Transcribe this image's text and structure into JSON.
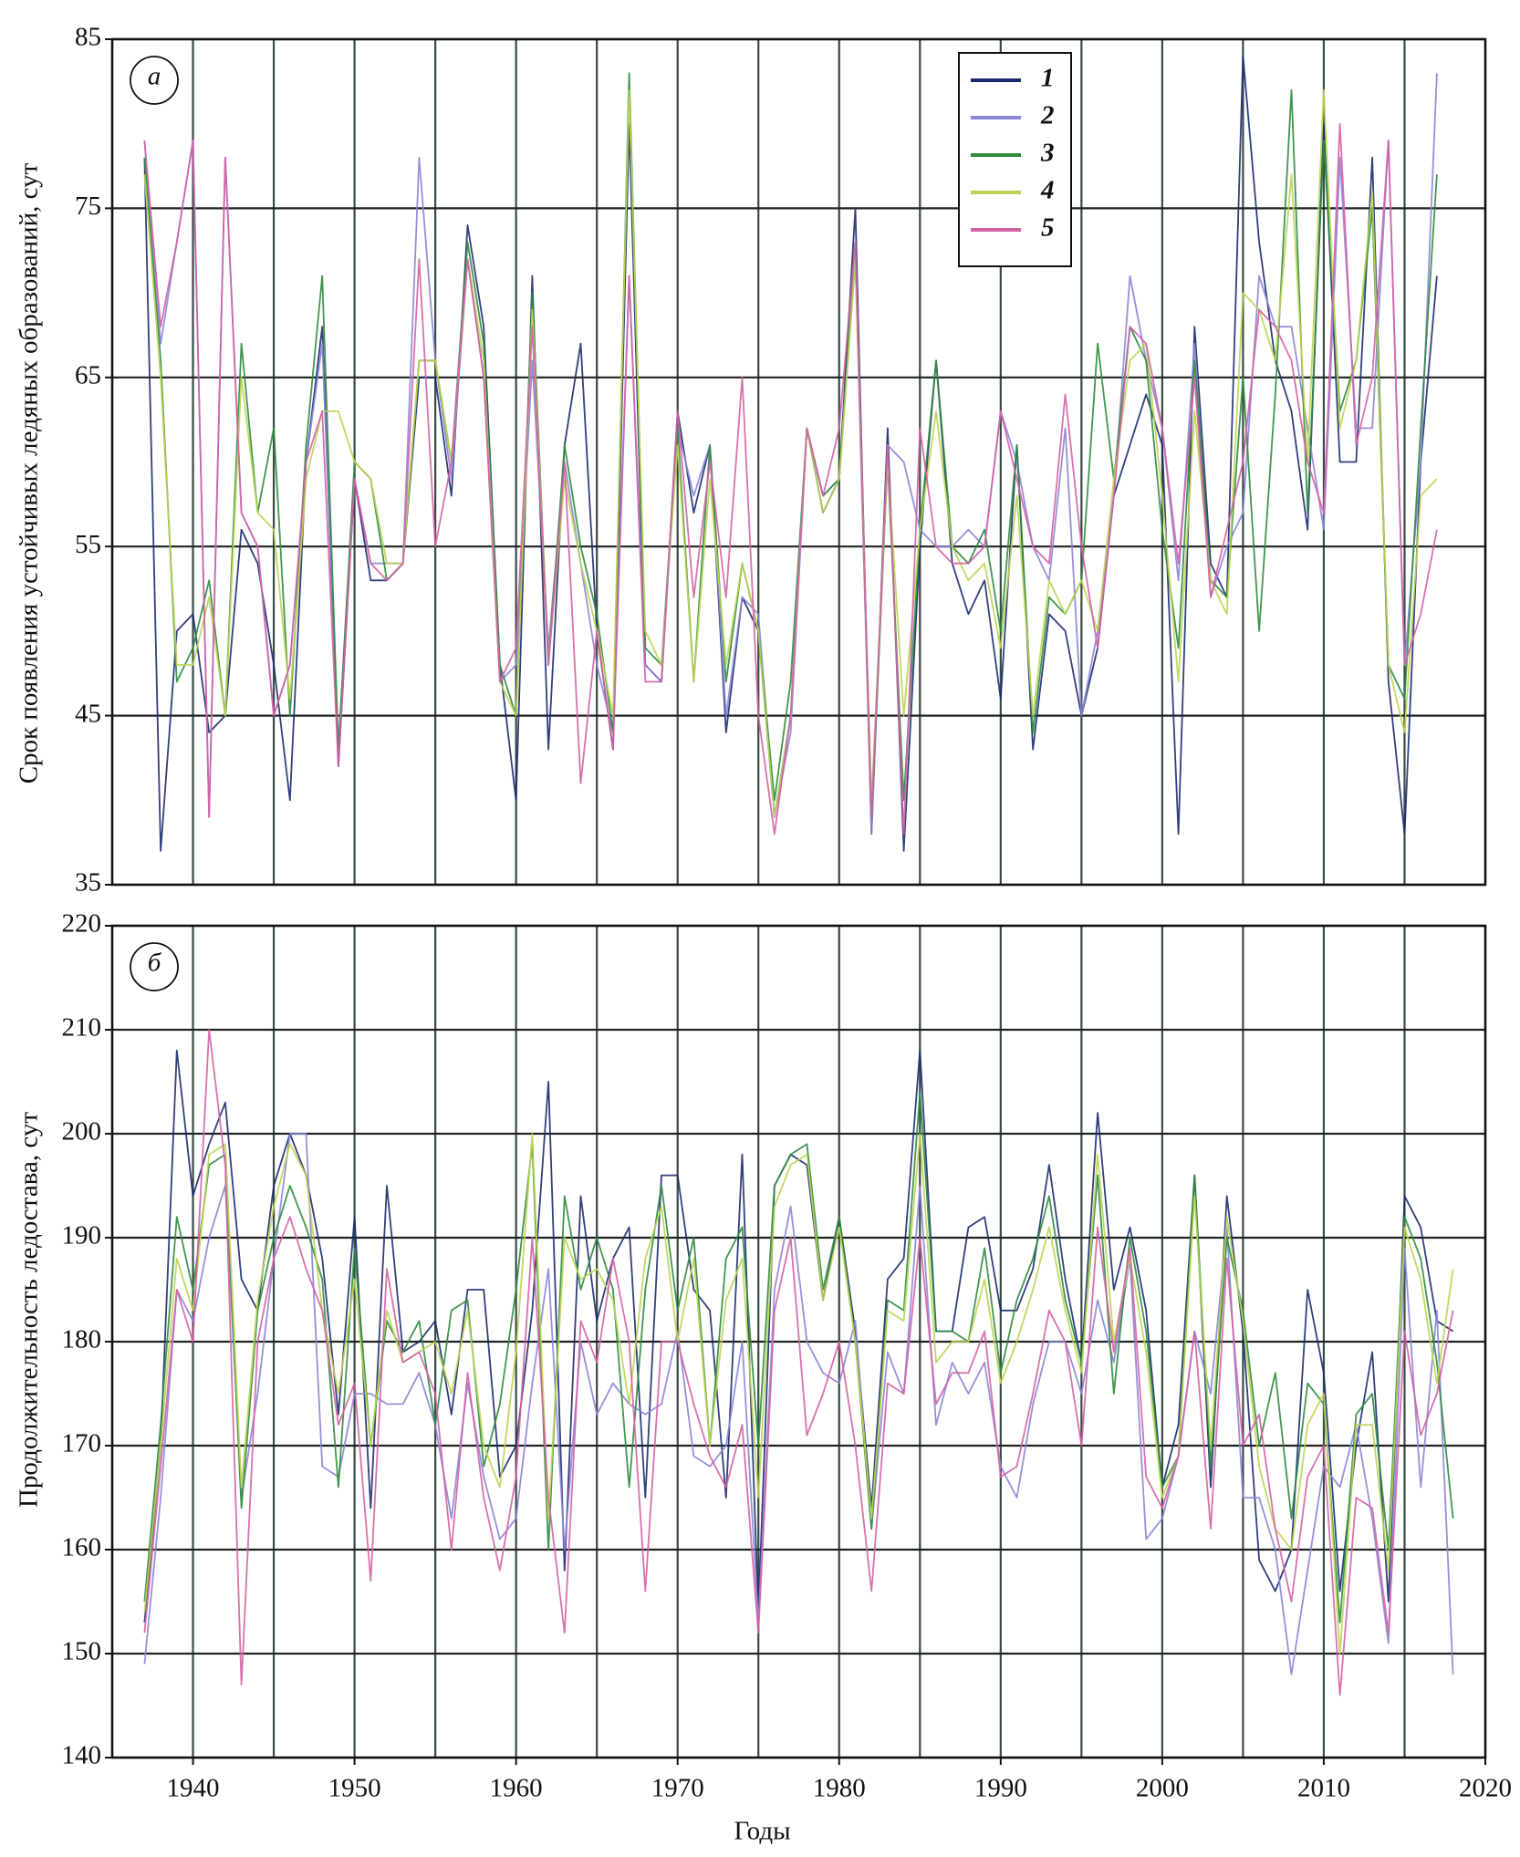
{
  "chart_data": [
    {
      "type": "line",
      "panel_label": "а",
      "y_label": "Срок появления устойчивых ледяных образований, сут",
      "xlim": [
        1935,
        2020
      ],
      "ylim": [
        35,
        85
      ],
      "yticks": [
        35,
        45,
        55,
        65,
        75,
        85
      ],
      "xgrid": [
        1935,
        1940,
        1945,
        1950,
        1955,
        1960,
        1965,
        1970,
        1975,
        1980,
        1985,
        1990,
        1995,
        2000,
        2005,
        2010,
        2015,
        2020
      ],
      "legend": "top-right",
      "grid": true,
      "x": [
        1937,
        1938,
        1939,
        1940,
        1941,
        1942,
        1943,
        1944,
        1945,
        1946,
        1947,
        1948,
        1949,
        1950,
        1951,
        1952,
        1953,
        1954,
        1955,
        1956,
        1957,
        1958,
        1959,
        1960,
        1961,
        1962,
        1963,
        1964,
        1965,
        1966,
        1967,
        1968,
        1969,
        1970,
        1971,
        1972,
        1973,
        1974,
        1975,
        1976,
        1977,
        1978,
        1979,
        1980,
        1981,
        1982,
        1983,
        1984,
        1985,
        1986,
        1987,
        1988,
        1989,
        1990,
        1991,
        1992,
        1993,
        1994,
        1995,
        1996,
        1997,
        1998,
        1999,
        2000,
        2001,
        2002,
        2003,
        2004,
        2005,
        2006,
        2007,
        2008,
        2009,
        2010,
        2011,
        2012,
        2013,
        2014,
        2015,
        2016,
        2017
      ],
      "series": [
        {
          "name": "1",
          "color": "#1c2b6e",
          "values": [
            78,
            37,
            50,
            51,
            44,
            45,
            56,
            54,
            48,
            40,
            60,
            68,
            42,
            59,
            53,
            53,
            54,
            65,
            65,
            58,
            74,
            68,
            48,
            40,
            71,
            43,
            61,
            67,
            50,
            43,
            80,
            48,
            47,
            63,
            57,
            61,
            44,
            52,
            50,
            39,
            45,
            62,
            57,
            59,
            75,
            38,
            62,
            37,
            55,
            66,
            54,
            51,
            53,
            46,
            61,
            43,
            51,
            50,
            45,
            49,
            58,
            61,
            64,
            61,
            38,
            68,
            54,
            52,
            84,
            73,
            66,
            63,
            56,
            80,
            60,
            60,
            78,
            47,
            38,
            60,
            71
          ]
        },
        {
          "name": "2",
          "color": "#8a86d6",
          "values": [
            79,
            67,
            73,
            79,
            39,
            78,
            57,
            55,
            45,
            48,
            60,
            67,
            43,
            59,
            54,
            54,
            54,
            78,
            66,
            59,
            72,
            65,
            47,
            48,
            66,
            49,
            60,
            54,
            48,
            44,
            71,
            48,
            47,
            62,
            58,
            61,
            45,
            52,
            51,
            39,
            44,
            62,
            58,
            59,
            72,
            38,
            61,
            60,
            56,
            55,
            55,
            56,
            55,
            63,
            60,
            55,
            53,
            62,
            45,
            50,
            58,
            71,
            66,
            62,
            53,
            67,
            52,
            55,
            57,
            71,
            68,
            68,
            62,
            56,
            78,
            62,
            62,
            79,
            48,
            60,
            83
          ]
        },
        {
          "name": "3",
          "color": "#2e8b3e",
          "values": [
            78,
            66,
            47,
            49,
            53,
            45,
            67,
            57,
            62,
            45,
            61,
            71,
            43,
            60,
            59,
            53,
            54,
            66,
            66,
            60,
            73,
            67,
            48,
            45,
            70,
            48,
            61,
            55,
            51,
            44,
            83,
            49,
            48,
            62,
            47,
            61,
            47,
            54,
            50,
            40,
            47,
            62,
            58,
            59,
            73,
            39,
            60,
            40,
            56,
            66,
            55,
            54,
            56,
            50,
            61,
            44,
            52,
            51,
            53,
            67,
            59,
            68,
            66,
            56,
            49,
            66,
            53,
            52,
            65,
            50,
            64,
            82,
            57,
            79,
            63,
            66,
            75,
            48,
            46,
            62,
            77
          ]
        },
        {
          "name": "4",
          "color": "#bcd454",
          "values": [
            77,
            65,
            48,
            48,
            52,
            45,
            65,
            57,
            56,
            46,
            59,
            63,
            63,
            60,
            59,
            54,
            54,
            66,
            66,
            60,
            72,
            66,
            47,
            45,
            69,
            48,
            59,
            54,
            50,
            45,
            82,
            50,
            48,
            61,
            47,
            59,
            48,
            54,
            50,
            39,
            45,
            62,
            57,
            59,
            72,
            40,
            60,
            45,
            56,
            63,
            55,
            53,
            54,
            49,
            58,
            45,
            53,
            51,
            53,
            50,
            59,
            66,
            67,
            58,
            47,
            63,
            53,
            51,
            70,
            69,
            66,
            77,
            60,
            82,
            62,
            66,
            76,
            48,
            44,
            58,
            59
          ]
        },
        {
          "name": "5",
          "color": "#d462a6",
          "values": [
            79,
            68,
            73,
            79,
            39,
            78,
            57,
            55,
            45,
            48,
            60,
            63,
            42,
            59,
            54,
            53,
            54,
            72,
            55,
            60,
            72,
            65,
            47,
            49,
            68,
            48,
            60,
            41,
            50,
            43,
            71,
            47,
            47,
            63,
            52,
            60,
            52,
            65,
            45,
            38,
            45,
            62,
            58,
            62,
            73,
            39,
            61,
            38,
            62,
            55,
            54,
            54,
            55,
            63,
            59,
            55,
            54,
            64,
            55,
            49,
            58,
            68,
            67,
            62,
            54,
            65,
            52,
            56,
            60,
            69,
            68,
            66,
            60,
            57,
            80,
            61,
            65,
            79,
            48,
            51,
            56
          ]
        }
      ]
    },
    {
      "type": "line",
      "panel_label": "б",
      "y_label": "Продолжительность ледостава, сут",
      "x_label": "Годы",
      "xlim": [
        1935,
        2020
      ],
      "ylim": [
        140,
        220
      ],
      "yticks": [
        140,
        150,
        160,
        170,
        180,
        190,
        200,
        210,
        220
      ],
      "xticks": [
        1940,
        1950,
        1960,
        1970,
        1980,
        1990,
        2000,
        2010,
        2020
      ],
      "xgrid": [
        1935,
        1940,
        1945,
        1950,
        1955,
        1960,
        1965,
        1970,
        1975,
        1980,
        1985,
        1990,
        1995,
        2000,
        2005,
        2010,
        2015,
        2020
      ],
      "grid": true,
      "x": [
        1937,
        1938,
        1939,
        1940,
        1941,
        1942,
        1943,
        1944,
        1945,
        1946,
        1947,
        1948,
        1949,
        1950,
        1951,
        1952,
        1953,
        1954,
        1955,
        1956,
        1957,
        1958,
        1959,
        1960,
        1961,
        1962,
        1963,
        1964,
        1965,
        1966,
        1967,
        1968,
        1969,
        1970,
        1971,
        1972,
        1973,
        1974,
        1975,
        1976,
        1977,
        1978,
        1979,
        1980,
        1981,
        1982,
        1983,
        1984,
        1985,
        1986,
        1987,
        1988,
        1989,
        1990,
        1991,
        1992,
        1993,
        1994,
        1995,
        1996,
        1997,
        1998,
        1999,
        2000,
        2001,
        2002,
        2003,
        2004,
        2005,
        2006,
        2007,
        2008,
        2009,
        2010,
        2011,
        2012,
        2013,
        2014,
        2015,
        2016,
        2017,
        2018
      ],
      "series": [
        {
          "color": "#1c2b6e",
          "values": [
            153,
            170,
            208,
            194,
            199,
            203,
            186,
            183,
            195,
            200,
            196,
            188,
            173,
            192,
            164,
            195,
            179,
            180,
            182,
            173,
            185,
            185,
            167,
            170,
            183,
            205,
            158,
            194,
            182,
            188,
            191,
            165,
            196,
            196,
            185,
            183,
            165,
            198,
            154,
            195,
            198,
            197,
            184,
            192,
            181,
            164,
            186,
            188,
            208,
            181,
            181,
            191,
            192,
            183,
            183,
            187,
            197,
            186,
            178,
            202,
            185,
            191,
            183,
            166,
            172,
            196,
            166,
            194,
            181,
            159,
            156,
            160,
            185,
            177,
            156,
            170,
            179,
            155,
            194,
            191,
            182,
            181
          ]
        },
        {
          "color": "#8a86d6",
          "values": [
            149,
            165,
            185,
            182,
            190,
            195,
            165,
            175,
            188,
            200,
            200,
            168,
            167,
            175,
            175,
            174,
            174,
            177,
            172,
            163,
            176,
            167,
            161,
            163,
            176,
            187,
            160,
            180,
            173,
            176,
            174,
            173,
            174,
            181,
            169,
            168,
            170,
            180,
            153,
            185,
            193,
            180,
            177,
            176,
            182,
            162,
            179,
            175,
            195,
            172,
            178,
            175,
            178,
            168,
            165,
            174,
            180,
            180,
            175,
            184,
            178,
            188,
            161,
            163,
            169,
            181,
            175,
            191,
            165,
            165,
            160,
            148,
            158,
            168,
            166,
            172,
            163,
            151,
            189,
            166,
            183,
            148
          ]
        },
        {
          "color": "#2e8b3e",
          "values": [
            155,
            172,
            192,
            185,
            197,
            198,
            164,
            183,
            190,
            195,
            191,
            186,
            166,
            189,
            170,
            182,
            179,
            182,
            172,
            183,
            184,
            168,
            174,
            185,
            199,
            160,
            194,
            185,
            190,
            185,
            166,
            185,
            195,
            183,
            190,
            170,
            188,
            191,
            170,
            195,
            198,
            199,
            185,
            192,
            180,
            162,
            184,
            183,
            204,
            181,
            181,
            180,
            189,
            177,
            184,
            188,
            194,
            184,
            178,
            196,
            175,
            190,
            181,
            166,
            169,
            196,
            168,
            190,
            183,
            170,
            177,
            163,
            176,
            174,
            153,
            173,
            175,
            160,
            192,
            188,
            178,
            163
          ]
        },
        {
          "color": "#bcd454",
          "values": [
            154,
            170,
            188,
            183,
            198,
            199,
            166,
            184,
            193,
            199,
            196,
            183,
            175,
            186,
            170,
            183,
            178,
            179,
            180,
            175,
            183,
            170,
            166,
            179,
            200,
            163,
            190,
            186,
            187,
            184,
            174,
            188,
            193,
            180,
            188,
            170,
            184,
            188,
            165,
            193,
            197,
            198,
            184,
            191,
            180,
            163,
            183,
            182,
            200,
            178,
            180,
            180,
            186,
            176,
            180,
            185,
            191,
            183,
            177,
            198,
            180,
            188,
            179,
            165,
            169,
            194,
            170,
            192,
            182,
            168,
            162,
            160,
            172,
            175,
            150,
            172,
            172,
            158,
            191,
            186,
            176,
            187
          ]
        },
        {
          "color": "#d462a6",
          "values": [
            152,
            168,
            185,
            180,
            210,
            197,
            147,
            180,
            188,
            192,
            187,
            183,
            172,
            176,
            157,
            187,
            178,
            179,
            175,
            160,
            177,
            165,
            158,
            167,
            190,
            165,
            152,
            182,
            178,
            188,
            180,
            156,
            180,
            180,
            174,
            169,
            166,
            172,
            152,
            183,
            190,
            171,
            175,
            180,
            170,
            156,
            176,
            175,
            190,
            174,
            177,
            177,
            181,
            167,
            168,
            175,
            183,
            180,
            170,
            191,
            179,
            189,
            167,
            164,
            169,
            181,
            162,
            188,
            170,
            173,
            162,
            155,
            167,
            170,
            146,
            165,
            164,
            152,
            181,
            171,
            175,
            183
          ]
        }
      ]
    }
  ]
}
